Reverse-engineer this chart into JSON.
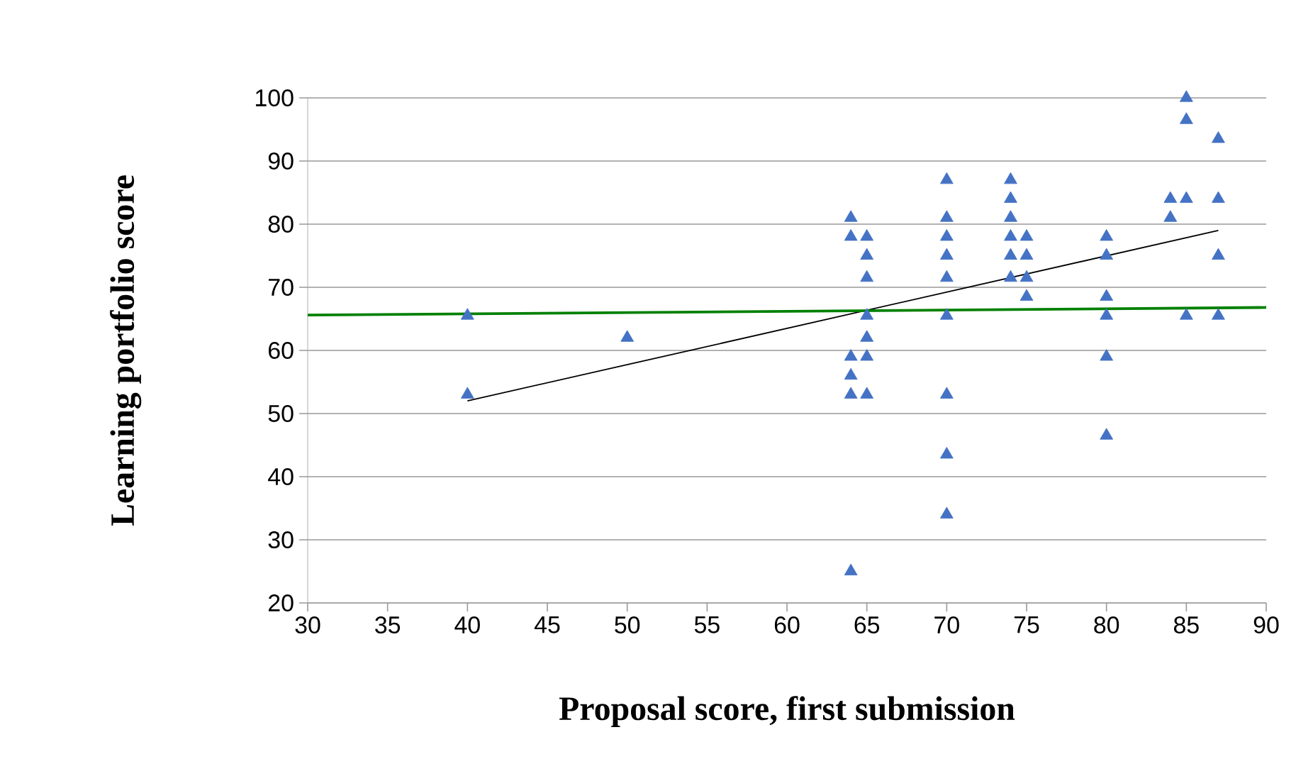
{
  "chart_data": {
    "type": "scatter",
    "xlabel": "Proposal score, first submission",
    "ylabel": "Learning portfolio score",
    "xlim": [
      30,
      90
    ],
    "xticks": [
      30,
      35,
      40,
      45,
      50,
      55,
      60,
      65,
      70,
      75,
      80,
      85,
      90
    ],
    "ylim": [
      20,
      100
    ],
    "yticks": [
      20,
      30,
      40,
      50,
      60,
      70,
      80,
      90,
      100
    ],
    "grid": "y",
    "marker": "triangle",
    "series": [
      {
        "color": "#4472c4",
        "x": [
          40,
          40,
          50,
          64,
          64,
          64,
          64,
          64,
          64,
          65,
          65,
          65,
          65,
          65,
          65,
          65,
          70,
          70,
          70,
          70,
          70,
          70,
          70,
          70,
          70,
          74,
          74,
          74,
          74,
          74,
          74,
          75,
          75,
          75,
          75,
          80,
          80,
          80,
          80,
          80,
          80,
          84,
          84,
          85,
          85,
          85,
          85,
          87,
          87,
          87,
          87
        ],
        "values": [
          65.5,
          53,
          62,
          81,
          78,
          59,
          56,
          53,
          25,
          78,
          75,
          71.5,
          65.5,
          62,
          59,
          53,
          87,
          81,
          78,
          75,
          71.5,
          65.5,
          53,
          43.5,
          34,
          87,
          84,
          81,
          78,
          75,
          71.5,
          78,
          75,
          71.5,
          68.5,
          78,
          75,
          68.5,
          65.5,
          59,
          46.5,
          84,
          81,
          100,
          96.5,
          84,
          65.5,
          93.5,
          84,
          75,
          65.5
        ]
      },
      {
        "type": "line",
        "color": "#000000",
        "marker": "none",
        "x": [
          40,
          87
        ],
        "values": [
          52,
          79
        ]
      },
      {
        "type": "line",
        "color": "#008000",
        "marker": "none",
        "x": [
          30,
          90
        ],
        "values": [
          65.6,
          66.8
        ]
      }
    ]
  }
}
